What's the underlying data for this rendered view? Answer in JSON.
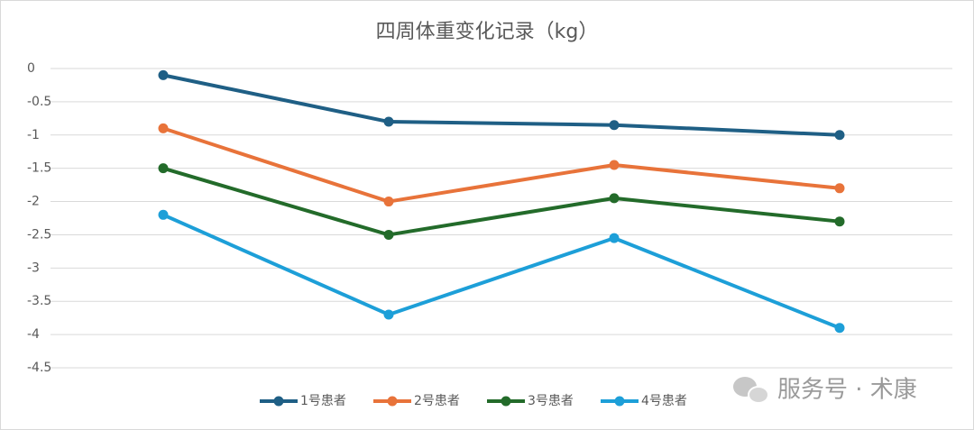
{
  "chart_data": {
    "type": "line",
    "title": "四周体重变化记录（kg）",
    "categories": [
      null,
      null,
      null,
      null
    ],
    "series": [
      {
        "name": "1号患者",
        "color": "#1f5f85",
        "values": [
          -0.1,
          -0.8,
          -0.85,
          -1.0
        ]
      },
      {
        "name": "2号患者",
        "color": "#e8733a",
        "values": [
          -0.9,
          -2.0,
          -1.45,
          -1.8
        ]
      },
      {
        "name": "3号患者",
        "color": "#236b2a",
        "values": [
          -1.5,
          -2.5,
          -1.95,
          -2.3
        ]
      },
      {
        "name": "4号患者",
        "color": "#1d9fd8",
        "values": [
          -2.2,
          -3.7,
          -2.55,
          -3.9
        ]
      }
    ],
    "ylim": [
      -4.5,
      0
    ],
    "yticks": [
      0,
      -0.5,
      -1,
      -1.5,
      -2,
      -2.5,
      -3,
      -3.5,
      -4,
      -4.5
    ],
    "grid": true,
    "legend": "bottom",
    "annotation": "服务号 · 术康"
  }
}
